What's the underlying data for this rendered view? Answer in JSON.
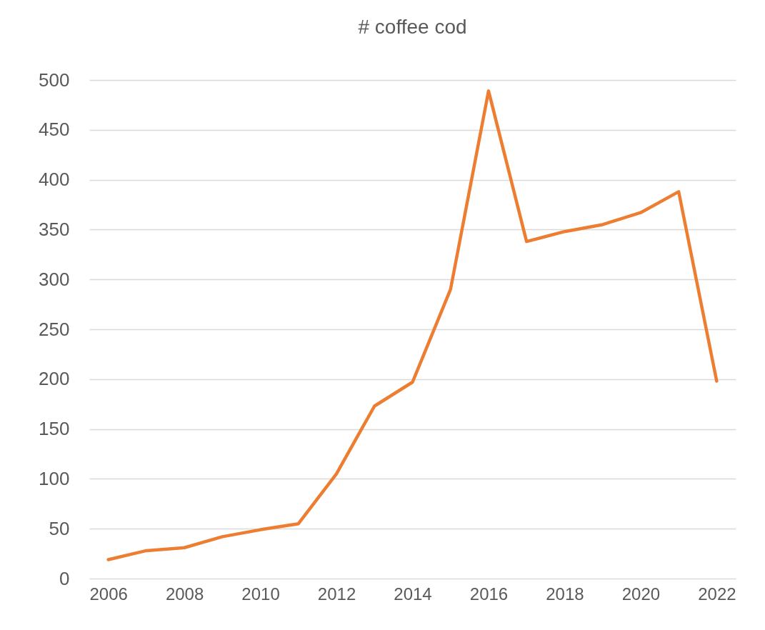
{
  "chart_data": {
    "type": "line",
    "title": "# coffee cod",
    "x": [
      2006,
      2007,
      2008,
      2009,
      2010,
      2011,
      2012,
      2013,
      2014,
      2015,
      2016,
      2017,
      2018,
      2019,
      2020,
      2021,
      2022
    ],
    "series": [
      {
        "color": "#ed7d31",
        "values": [
          19,
          28,
          31,
          42,
          49,
          55,
          105,
          173,
          197,
          290,
          489,
          338,
          348,
          355,
          367,
          388,
          198
        ]
      }
    ],
    "xlim": [
      2005.5,
      2022.5
    ],
    "xticks": [
      2006,
      2008,
      2010,
      2012,
      2014,
      2016,
      2018,
      2020,
      2022
    ],
    "ylim": [
      0,
      500
    ],
    "yticks": [
      0,
      50,
      100,
      150,
      200,
      250,
      300,
      350,
      400,
      450,
      500
    ],
    "grid": "y",
    "marker": "none",
    "line_style": "solid"
  }
}
